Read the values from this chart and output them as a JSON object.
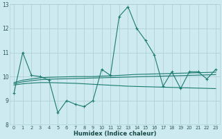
{
  "xlabel": "Humidex (Indice chaleur)",
  "bg_color": "#cdeaf0",
  "grid_color": "#b0d0d8",
  "line_color": "#1a7a6e",
  "xlim": [
    -0.5,
    23.5
  ],
  "ylim": [
    8,
    13
  ],
  "yticks": [
    8,
    9,
    10,
    11,
    12,
    13
  ],
  "xticks": [
    0,
    1,
    2,
    3,
    4,
    5,
    6,
    7,
    8,
    9,
    10,
    11,
    12,
    13,
    14,
    15,
    16,
    17,
    18,
    19,
    20,
    21,
    22,
    23
  ],
  "series1_x": [
    0,
    1,
    2,
    3,
    4,
    5,
    6,
    7,
    8,
    9,
    10,
    11,
    12,
    13,
    14,
    15,
    16,
    17,
    18,
    19,
    20,
    21,
    22,
    23
  ],
  "series1_y": [
    9.3,
    11.0,
    10.05,
    10.0,
    9.85,
    8.5,
    9.0,
    8.85,
    8.75,
    9.0,
    10.3,
    10.05,
    12.5,
    12.9,
    12.0,
    11.5,
    10.9,
    9.6,
    10.2,
    9.5,
    10.2,
    10.2,
    9.9,
    10.3
  ],
  "series2_x": [
    0,
    1,
    2,
    3,
    4,
    5,
    6,
    7,
    8,
    9,
    10,
    11,
    12,
    13,
    14,
    15,
    16,
    17,
    18,
    19,
    20,
    21,
    22,
    23
  ],
  "series2_y": [
    9.75,
    9.85,
    9.9,
    9.95,
    9.97,
    9.98,
    9.99,
    10.0,
    10.0,
    10.0,
    10.02,
    10.03,
    10.05,
    10.07,
    10.09,
    10.1,
    10.11,
    10.12,
    10.13,
    10.14,
    10.15,
    10.16,
    10.17,
    10.18
  ],
  "series3_x": [
    0,
    1,
    2,
    3,
    4,
    5,
    6,
    7,
    8,
    9,
    10,
    11,
    12,
    13,
    14,
    15,
    16,
    17,
    18,
    19,
    20,
    21,
    22,
    23
  ],
  "series3_y": [
    9.7,
    9.78,
    9.83,
    9.87,
    9.89,
    9.9,
    9.91,
    9.92,
    9.93,
    9.94,
    9.95,
    9.96,
    9.97,
    9.98,
    9.99,
    10.0,
    10.01,
    10.02,
    10.03,
    10.04,
    10.05,
    10.06,
    10.07,
    10.08
  ],
  "series4_x": [
    0,
    1,
    2,
    3,
    4,
    5,
    6,
    7,
    8,
    9,
    10,
    11,
    12,
    13,
    14,
    15,
    16,
    17,
    18,
    19,
    20,
    21,
    22,
    23
  ],
  "series4_y": [
    9.65,
    9.7,
    9.73,
    9.75,
    9.75,
    9.74,
    9.73,
    9.72,
    9.7,
    9.68,
    9.66,
    9.64,
    9.62,
    9.6,
    9.59,
    9.58,
    9.57,
    9.56,
    9.55,
    9.54,
    9.53,
    9.52,
    9.51,
    9.5
  ]
}
